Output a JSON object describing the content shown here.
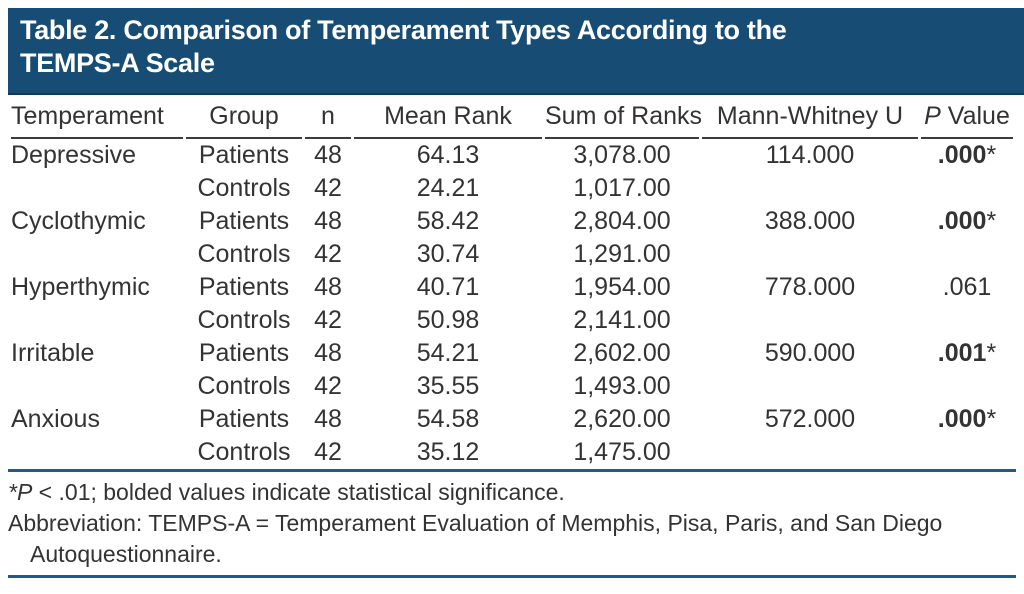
{
  "banner": {
    "title_line1": "Table 2. Comparison of Temperament Types According to the",
    "title_line2": "TEMPS-A Scale"
  },
  "table": {
    "headers": [
      "Temperament",
      "Group",
      "n",
      "Mean Rank",
      "Sum of Ranks",
      "Mann-Whitney U"
    ],
    "p_header": {
      "italic": "P",
      "rest": " Value"
    },
    "rows": [
      {
        "temperament": "Depressive",
        "group": "Patients",
        "n": "48",
        "mean_rank": "64.13",
        "sum_of_ranks": "3,078.00",
        "mann_whitney_u": "114.000",
        "p_value": ".000",
        "p_star": "*",
        "p_bold": true
      },
      {
        "temperament": "",
        "group": "Controls",
        "n": "42",
        "mean_rank": "24.21",
        "sum_of_ranks": "1,017.00",
        "mann_whitney_u": "",
        "p_value": "",
        "p_star": "",
        "p_bold": false
      },
      {
        "temperament": "Cyclothymic",
        "group": "Patients",
        "n": "48",
        "mean_rank": "58.42",
        "sum_of_ranks": "2,804.00",
        "mann_whitney_u": "388.000",
        "p_value": ".000",
        "p_star": "*",
        "p_bold": true
      },
      {
        "temperament": "",
        "group": "Controls",
        "n": "42",
        "mean_rank": "30.74",
        "sum_of_ranks": "1,291.00",
        "mann_whitney_u": "",
        "p_value": "",
        "p_star": "",
        "p_bold": false
      },
      {
        "temperament": "Hyperthymic",
        "group": "Patients",
        "n": "48",
        "mean_rank": "40.71",
        "sum_of_ranks": "1,954.00",
        "mann_whitney_u": "778.000",
        "p_value": ".061",
        "p_star": "",
        "p_bold": false
      },
      {
        "temperament": "",
        "group": "Controls",
        "n": "42",
        "mean_rank": "50.98",
        "sum_of_ranks": "2,141.00",
        "mann_whitney_u": "",
        "p_value": "",
        "p_star": "",
        "p_bold": false
      },
      {
        "temperament": "Irritable",
        "group": "Patients",
        "n": "48",
        "mean_rank": "54.21",
        "sum_of_ranks": "2,602.00",
        "mann_whitney_u": "590.000",
        "p_value": ".001",
        "p_star": "*",
        "p_bold": true
      },
      {
        "temperament": "",
        "group": "Controls",
        "n": "42",
        "mean_rank": "35.55",
        "sum_of_ranks": "1,493.00",
        "mann_whitney_u": "",
        "p_value": "",
        "p_star": "",
        "p_bold": false
      },
      {
        "temperament": "Anxious",
        "group": "Patients",
        "n": "48",
        "mean_rank": "54.58",
        "sum_of_ranks": "2,620.00",
        "mann_whitney_u": "572.000",
        "p_value": ".000",
        "p_star": "*",
        "p_bold": true
      },
      {
        "temperament": "",
        "group": "Controls",
        "n": "42",
        "mean_rank": "35.12",
        "sum_of_ranks": "1,475.00",
        "mann_whitney_u": "",
        "p_value": "",
        "p_star": "",
        "p_bold": false
      }
    ]
  },
  "footnotes": {
    "sig_italic": "*P",
    "sig_rest": " < .01; bolded values indicate statistical significance.",
    "abbrev_line1": "Abbreviation: TEMPS-A = Temperament Evaluation of Memphis, Pisa, Paris, and San Diego",
    "abbrev_line2": "Autoquestionnaire."
  },
  "colors": {
    "banner_blue": "#174C75",
    "rule_blue": "#1E5A8C",
    "text": "#333333",
    "header_line": "#3C3C3C"
  }
}
